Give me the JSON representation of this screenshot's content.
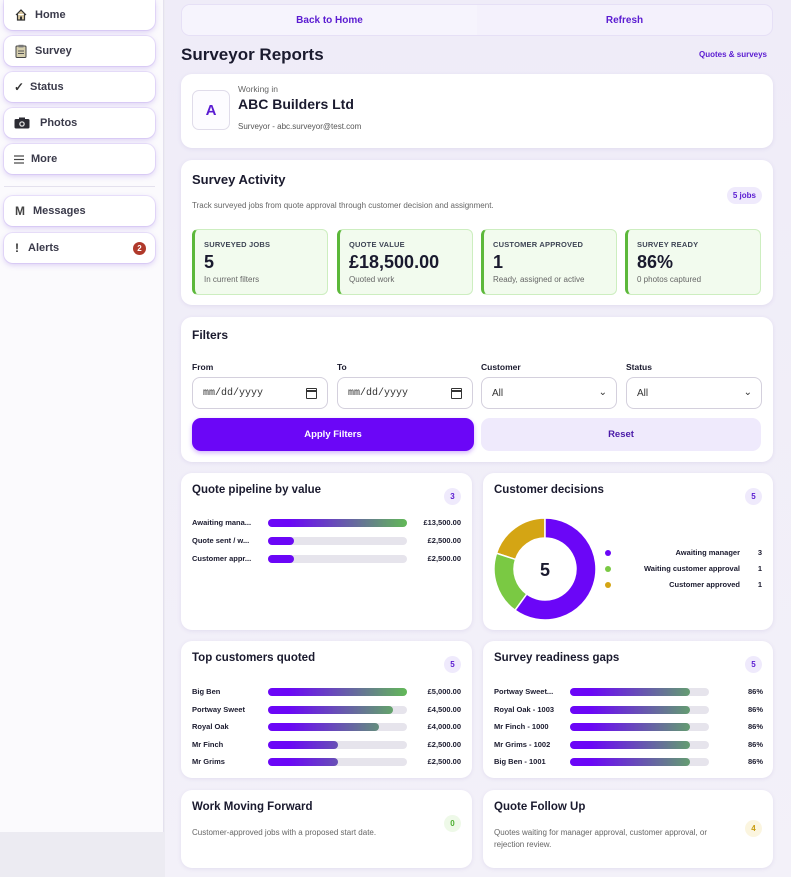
{
  "sidebar": {
    "items": [
      {
        "label": "Home",
        "icon": "home-icon"
      },
      {
        "label": "Survey",
        "icon": "clipboard-icon"
      },
      {
        "label": "Status",
        "icon": "checkmark-icon"
      },
      {
        "label": "Photos",
        "icon": "camera-icon"
      },
      {
        "label": "More",
        "icon": "menu-icon"
      },
      {
        "label": "Messages",
        "icon": "messages-icon"
      },
      {
        "label": "Alerts",
        "icon": "alert-icon",
        "badge": "2"
      }
    ]
  },
  "topbar": {
    "back_label": "Back to Home",
    "refresh_label": "Refresh"
  },
  "page": {
    "title": "Surveyor Reports",
    "link": "Quotes & surveys"
  },
  "company": {
    "avatar_letter": "A",
    "working_in": "Working in",
    "name": "ABC Builders Ltd",
    "user_line": "Surveyor - abc.surveyor@test.com"
  },
  "activity": {
    "title": "Survey Activity",
    "badge": "5 jobs",
    "description": "Track surveyed jobs from quote approval through customer decision and assignment.",
    "stats": [
      {
        "label": "SURVEYED JOBS",
        "value": "5",
        "sub": "In current filters"
      },
      {
        "label": "QUOTE VALUE",
        "value": "£18,500.00",
        "sub": "Quoted work"
      },
      {
        "label": "CUSTOMER APPROVED",
        "value": "1",
        "sub": "Ready, assigned or active"
      },
      {
        "label": "SURVEY READY",
        "value": "86%",
        "sub": "0 photos captured"
      }
    ]
  },
  "filters": {
    "title": "Filters",
    "from_label": "From",
    "from_value": "mm/dd/yyyy",
    "to_label": "To",
    "to_value": "mm/dd/yyyy",
    "customer_label": "Customer",
    "customer_value": "All",
    "status_label": "Status",
    "status_value": "All",
    "apply_label": "Apply Filters",
    "reset_label": "Reset"
  },
  "pipeline": {
    "title": "Quote pipeline by value",
    "badge": "3",
    "rows": [
      {
        "label": "Awaiting mana...",
        "value": "£13,500.00",
        "fraction": 1.0
      },
      {
        "label": "Quote sent / w...",
        "value": "£2,500.00",
        "fraction": 0.185
      },
      {
        "label": "Customer appr...",
        "value": "£2,500.00",
        "fraction": 0.185
      }
    ]
  },
  "decisions": {
    "title": "Customer decisions",
    "badge": "5",
    "center": "5",
    "colors": {
      "awaiting": "#6b06f7",
      "waiting": "#7ac943",
      "approved": "#d4a514"
    },
    "legend": [
      {
        "label": "Awaiting manager",
        "count": "3",
        "value": 3,
        "color": "#6b06f7"
      },
      {
        "label": "Waiting customer approval",
        "count": "1",
        "value": 1,
        "color": "#7ac943"
      },
      {
        "label": "Customer approved",
        "count": "1",
        "value": 1,
        "color": "#d4a514"
      }
    ]
  },
  "top_customers": {
    "title": "Top customers quoted",
    "badge": "5",
    "rows": [
      {
        "label": "Big Ben",
        "value": "£5,000.00",
        "fraction": 1.0
      },
      {
        "label": "Portway Sweet",
        "value": "£4,500.00",
        "fraction": 0.9
      },
      {
        "label": "Royal Oak",
        "value": "£4,000.00",
        "fraction": 0.8
      },
      {
        "label": "Mr Finch",
        "value": "£2,500.00",
        "fraction": 0.5
      },
      {
        "label": "Mr Grims",
        "value": "£2,500.00",
        "fraction": 0.5
      }
    ]
  },
  "readiness": {
    "title": "Survey readiness gaps",
    "badge": "5",
    "rows": [
      {
        "label": "Portway Sweet...",
        "value": "86%",
        "fraction": 0.86
      },
      {
        "label": "Royal Oak - 1003",
        "value": "86%",
        "fraction": 0.86
      },
      {
        "label": "Mr Finch - 1000",
        "value": "86%",
        "fraction": 0.86
      },
      {
        "label": "Mr Grims - 1002",
        "value": "86%",
        "fraction": 0.86
      },
      {
        "label": "Big Ben - 1001",
        "value": "86%",
        "fraction": 0.86
      }
    ]
  },
  "work_forward": {
    "title": "Work Moving Forward",
    "badge": "0",
    "description": "Customer-approved jobs with a proposed start date."
  },
  "follow_up": {
    "title": "Quote Follow Up",
    "badge": "4",
    "description": "Quotes waiting for manager approval, customer approval, or rejection review."
  }
}
